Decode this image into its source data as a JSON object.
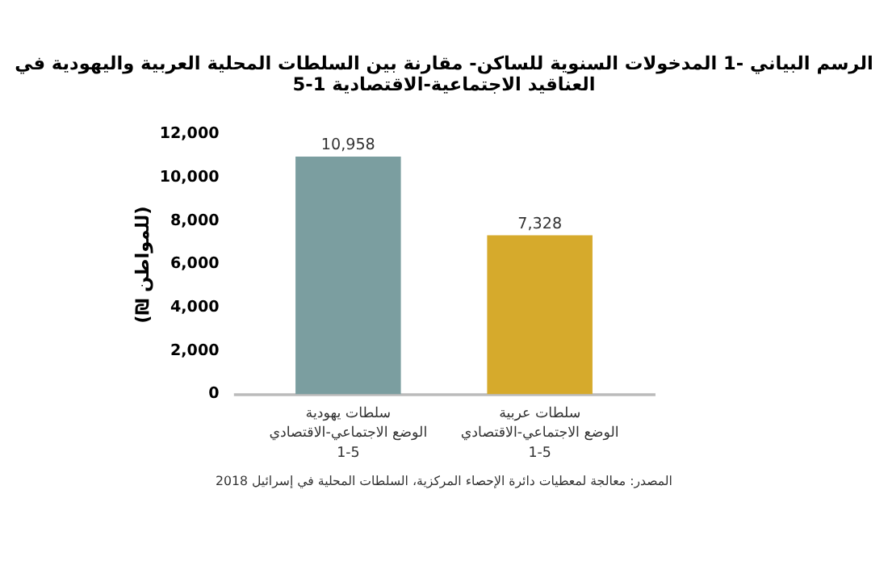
{
  "chart_data": {
    "type": "bar",
    "title": "الرسم البياني -1 المدخولات السنوية للساكن- مقارنة بين السلطات المحلية العربية واليهودية في\nالعناقيد الاجتماعية-الاقتصادية 1-5",
    "ylabel": "(₪ للمواطن)",
    "categories": [
      "سلطات يهودية\nالوضع الاجتماعي-الاقتصادي\n1-5",
      "سلطات عربية\nالوضع الاجتماعي-الاقتصادي\n1-5"
    ],
    "values": [
      10958,
      7328
    ],
    "value_labels": [
      "10,958",
      "7,328"
    ],
    "data_labels": true,
    "colors": [
      "#7b9ea0",
      "#d6aa2c"
    ],
    "ylim": [
      0,
      12000
    ],
    "yticks": [
      0,
      {
        "value": 2000,
        "label": "2,000"
      },
      {
        "value": 4000,
        "label": "4,000"
      },
      {
        "value": 6000,
        "label": "6,000"
      },
      {
        "value": 8000,
        "label": "8,000"
      },
      {
        "value": 10000,
        "label": "10,000"
      },
      {
        "value": 12000,
        "label": "12,000"
      }
    ],
    "grid": false,
    "legend": false,
    "annotations": [
      "المصدر: معالجة لمعطيات دائرة الإحصاء المركزية، السلطات المحلية في إسرائيل 2018"
    ]
  }
}
